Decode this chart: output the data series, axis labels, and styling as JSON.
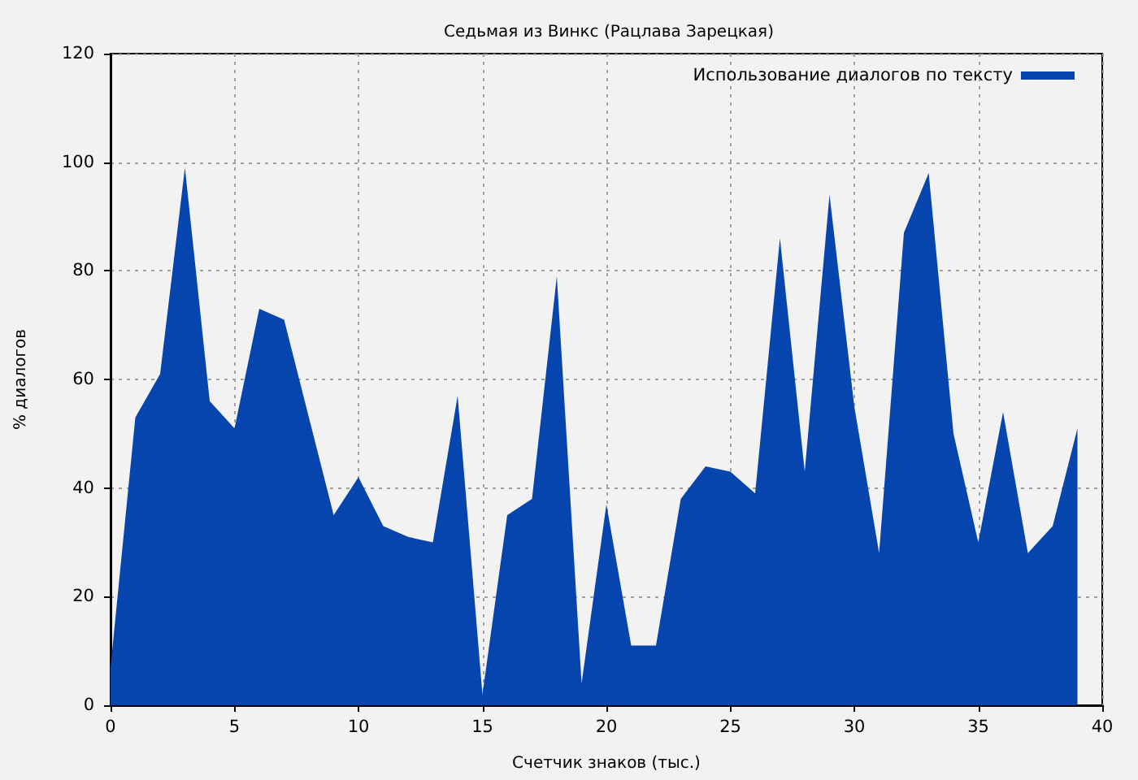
{
  "chart_data": {
    "type": "area",
    "title": "Седьмая из Винкс (Рацлава Зарецкая)",
    "xlabel": "Счетчик знаков (тыс.)",
    "ylabel": "% диалогов",
    "x": [
      0,
      1,
      2,
      3,
      4,
      5,
      6,
      7,
      8,
      9,
      10,
      11,
      12,
      13,
      14,
      15,
      16,
      17,
      18,
      19,
      20,
      21,
      22,
      23,
      24,
      25,
      26,
      27,
      28,
      29,
      30,
      31,
      32,
      33,
      34,
      35,
      36,
      37,
      38,
      39
    ],
    "series": [
      {
        "name": "Использование диалогов по тексту",
        "color": "#0645ad",
        "values": [
          7,
          53,
          61,
          99,
          56,
          51,
          73,
          71,
          53,
          35,
          42,
          33,
          31,
          30,
          57,
          2,
          35,
          38,
          79,
          4,
          37,
          11,
          11,
          38,
          44,
          43,
          39,
          86,
          43,
          94,
          55,
          28,
          87,
          98,
          50,
          30,
          54,
          28,
          33,
          51
        ]
      }
    ],
    "xlim": [
      0,
      40
    ],
    "xticks": [
      0,
      5,
      10,
      15,
      20,
      25,
      30,
      35,
      40
    ],
    "ylim": [
      0,
      120
    ],
    "yticks": [
      0,
      20,
      40,
      60,
      80,
      100,
      120
    ],
    "grid": true,
    "legend": "top right"
  }
}
